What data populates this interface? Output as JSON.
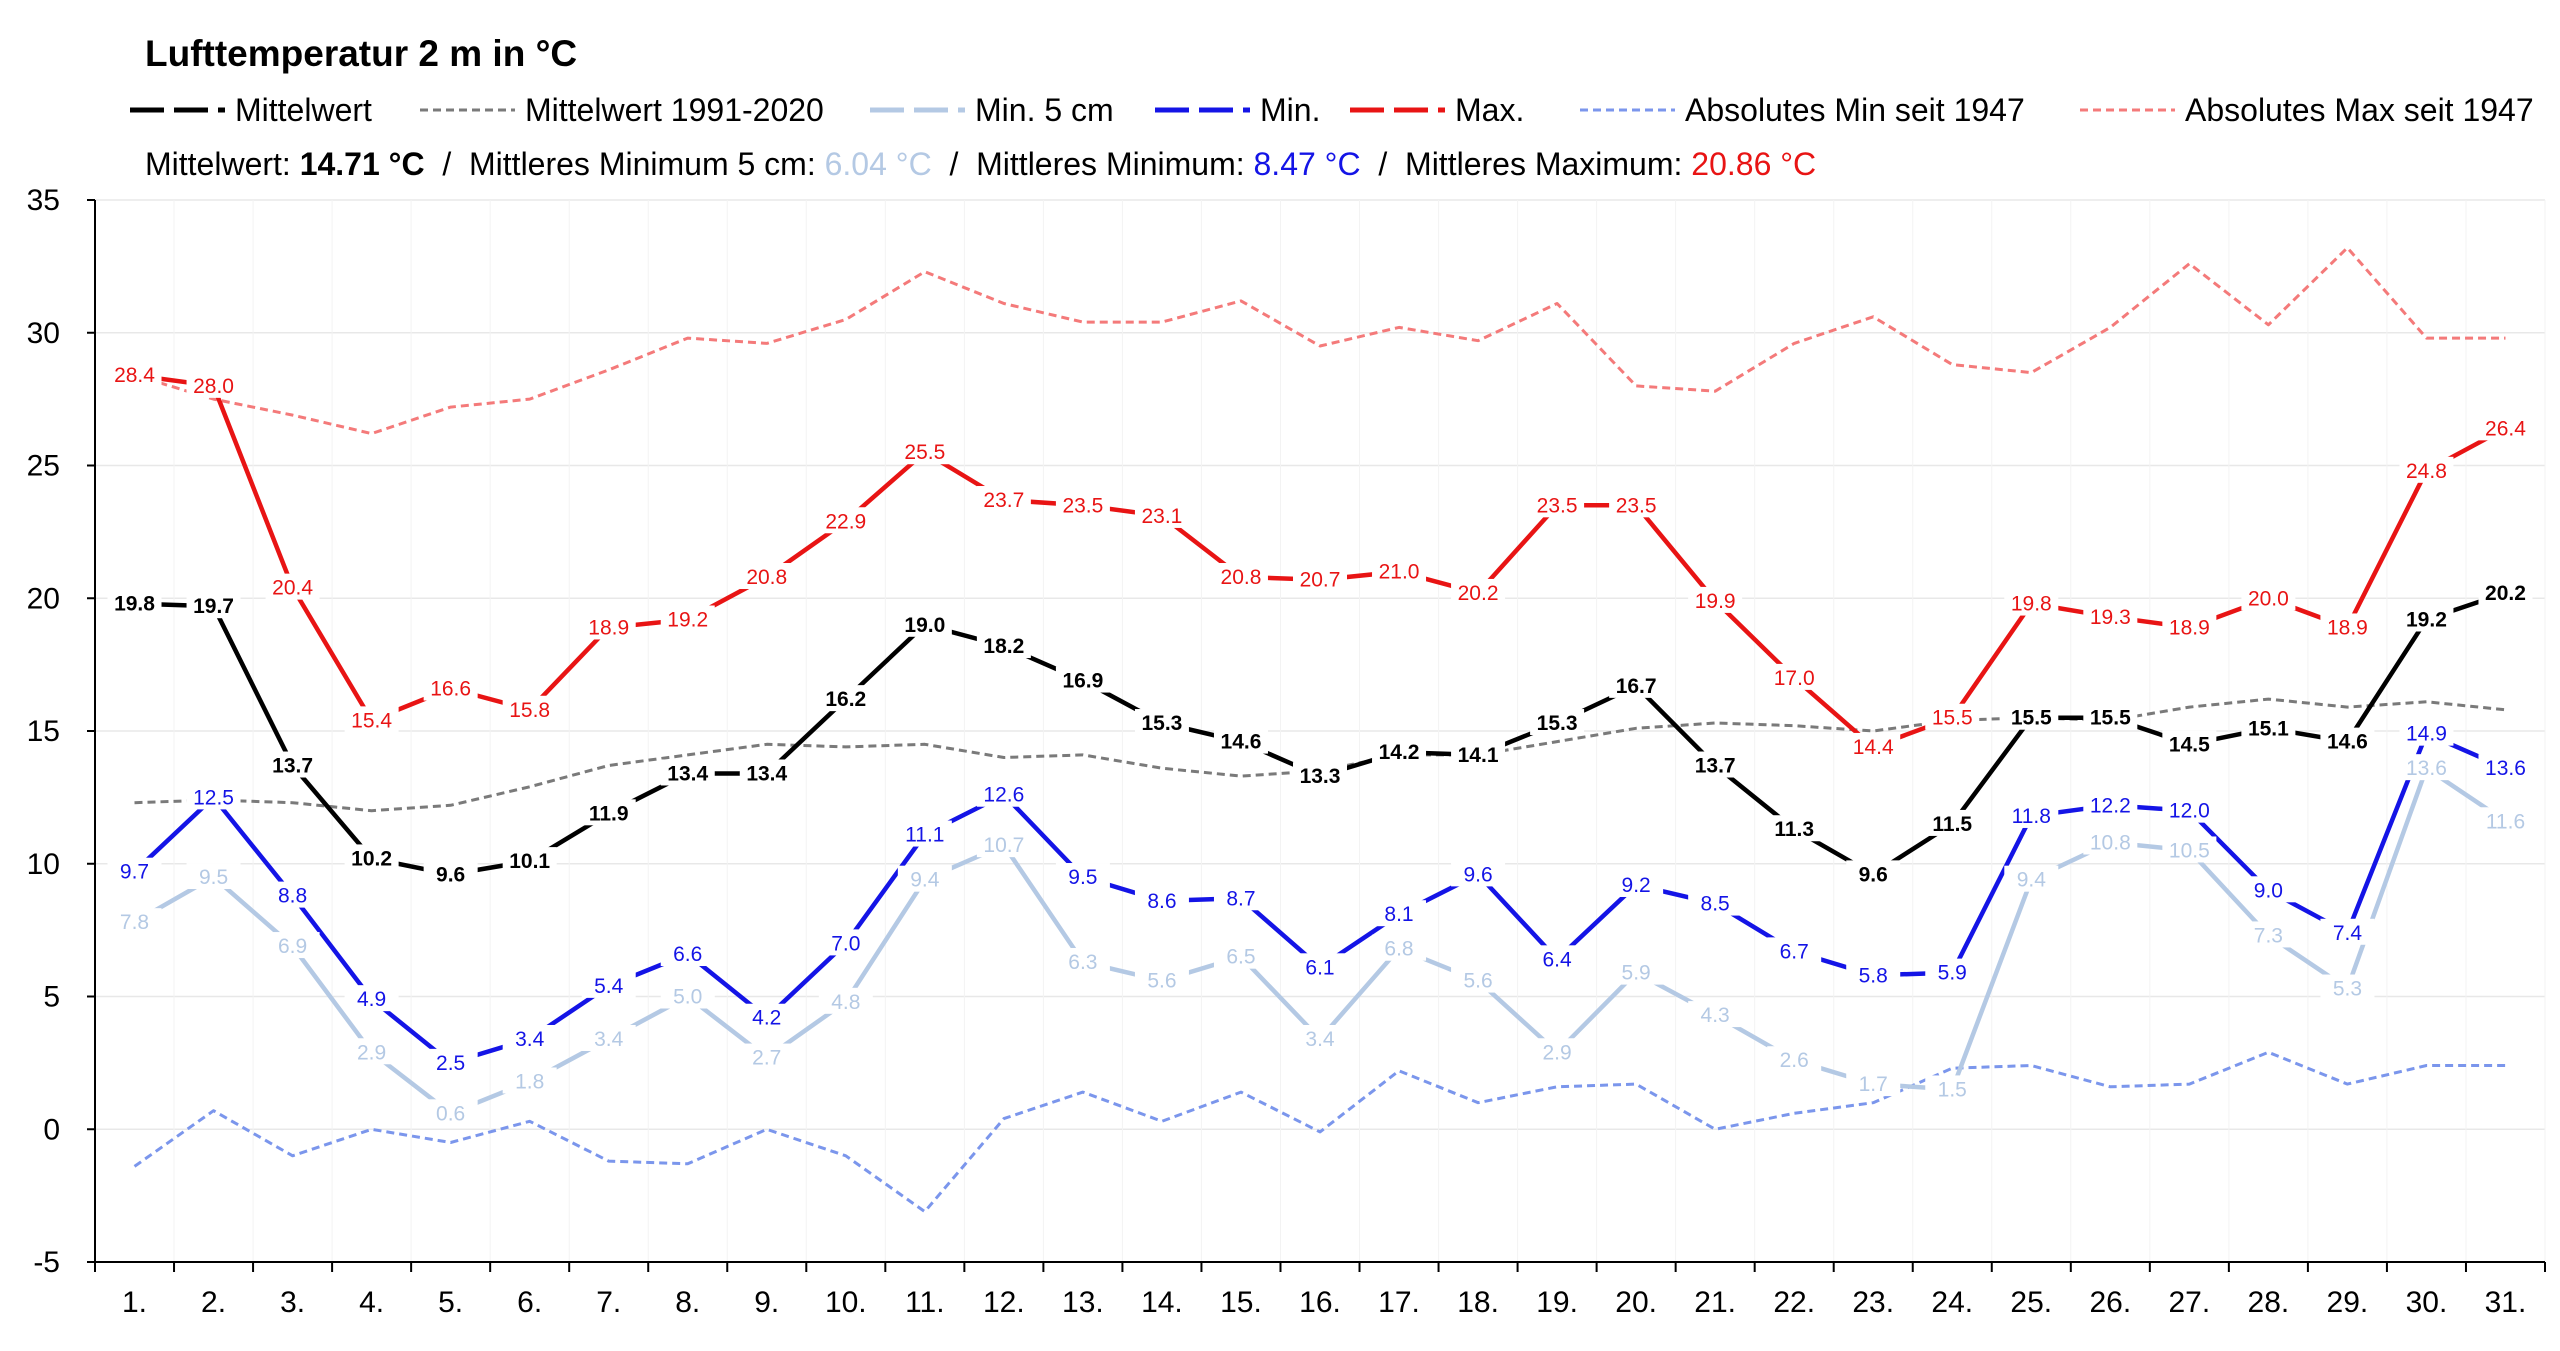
{
  "chart_data": {
    "type": "line",
    "title": "Lufttemperatur 2 m in °C",
    "categories": [
      "1.",
      "2.",
      "3.",
      "4.",
      "5.",
      "6.",
      "7.",
      "8.",
      "9.",
      "10.",
      "11.",
      "12.",
      "13.",
      "14.",
      "15.",
      "16.",
      "17.",
      "18.",
      "19.",
      "20.",
      "21.",
      "22.",
      "23.",
      "24.",
      "25.",
      "26.",
      "27.",
      "28.",
      "29.",
      "30.",
      "31."
    ],
    "ylim": [
      -5,
      35
    ],
    "yticks": [
      "-5",
      "0",
      "5",
      "10",
      "15",
      "20",
      "25",
      "30",
      "35"
    ],
    "grid": true,
    "legend_position": "top",
    "series": [
      {
        "name": "Absolutes Min seit 1947",
        "color": "#7b96ec",
        "style": "dotted",
        "labels": false,
        "values": [
          -1.4,
          0.7,
          -1.0,
          0.0,
          -0.5,
          0.3,
          -1.2,
          -1.3,
          0.0,
          -1.0,
          -3.1,
          0.4,
          1.4,
          0.3,
          1.4,
          -0.1,
          2.2,
          1.0,
          1.6,
          1.7,
          0.0,
          0.6,
          1.0,
          2.3,
          2.4,
          1.6,
          1.7,
          2.9,
          1.7,
          2.4,
          2.4
        ]
      },
      {
        "name": "Absolutes Max seit 1947",
        "color": "#f47a7a",
        "style": "dotted",
        "labels": false,
        "values": [
          28.4,
          27.5,
          26.9,
          26.2,
          27.2,
          27.5,
          28.6,
          29.8,
          29.6,
          30.5,
          32.3,
          31.1,
          30.4,
          30.4,
          31.2,
          29.5,
          30.2,
          29.7,
          31.1,
          28.0,
          27.8,
          29.6,
          30.6,
          28.8,
          28.5,
          30.2,
          32.6,
          30.3,
          33.2,
          29.8,
          29.8
        ]
      },
      {
        "name": "Mittelwert 1991-2020",
        "color": "#7a7a7a",
        "style": "dotted",
        "labels": false,
        "values": [
          12.3,
          12.4,
          12.3,
          12.0,
          12.2,
          12.9,
          13.7,
          14.1,
          14.5,
          14.4,
          14.5,
          14.0,
          14.1,
          13.6,
          13.3,
          13.5,
          14.1,
          14.1,
          14.6,
          15.1,
          15.3,
          15.2,
          15.0,
          15.4,
          15.5,
          15.4,
          15.9,
          16.2,
          15.9,
          16.1,
          15.8
        ]
      },
      {
        "name": "Min. 5 cm",
        "color": "#b4c9e4",
        "style": "solid",
        "labels": true,
        "values": [
          7.8,
          9.5,
          6.9,
          2.9,
          0.6,
          1.8,
          3.4,
          5.0,
          2.7,
          4.8,
          9.4,
          10.7,
          6.3,
          5.6,
          6.5,
          3.4,
          6.8,
          5.6,
          2.9,
          5.9,
          4.3,
          2.6,
          1.7,
          1.5,
          9.4,
          10.8,
          10.5,
          7.3,
          5.3,
          13.6,
          11.6
        ]
      },
      {
        "name": "Min.",
        "color": "#1414e6",
        "style": "solid",
        "labels": true,
        "values": [
          9.7,
          12.5,
          8.8,
          4.9,
          2.5,
          3.4,
          5.4,
          6.6,
          4.2,
          7.0,
          11.1,
          12.6,
          9.5,
          8.6,
          8.7,
          6.1,
          8.1,
          9.6,
          6.4,
          9.2,
          8.5,
          6.7,
          5.8,
          5.9,
          11.8,
          12.2,
          12.0,
          9.0,
          7.4,
          14.9,
          13.6
        ]
      },
      {
        "name": "Max.",
        "color": "#e81414",
        "style": "solid",
        "labels": true,
        "values": [
          28.4,
          28.0,
          20.4,
          15.4,
          16.6,
          15.8,
          18.9,
          19.2,
          20.8,
          22.9,
          25.5,
          23.7,
          23.5,
          23.1,
          20.8,
          20.7,
          21.0,
          20.2,
          23.5,
          23.5,
          19.9,
          17.0,
          14.4,
          15.5,
          19.8,
          19.3,
          18.9,
          20.0,
          18.9,
          24.8,
          26.4
        ]
      },
      {
        "name": "Mittelwert",
        "color": "#000000",
        "style": "solid",
        "labels": true,
        "values": [
          19.8,
          19.7,
          13.7,
          10.2,
          9.6,
          10.1,
          11.9,
          13.4,
          13.4,
          16.2,
          19.0,
          18.2,
          16.9,
          15.3,
          14.6,
          13.3,
          14.2,
          14.1,
          15.3,
          16.7,
          13.7,
          11.3,
          9.6,
          11.5,
          15.5,
          15.5,
          14.5,
          15.1,
          14.6,
          19.2,
          20.2
        ]
      }
    ]
  },
  "stats": {
    "mean_label": "Mittelwert: ",
    "mean_value": "14.71 °C",
    "sep1": "  /  ",
    "min5_label": "Mittleres Minimum 5 cm: ",
    "min5_value": "6.04 °C",
    "sep2": "  /  ",
    "min_label": "Mittleres Minimum: ",
    "min_value": "8.47 °C",
    "sep3": "  /  ",
    "max_label": "Mittleres Maximum: ",
    "max_value": "20.86 °C"
  },
  "legend": [
    {
      "label": "Mittelwert",
      "color": "#000000",
      "style": "dash"
    },
    {
      "label": "Mittelwert 1991-2020",
      "color": "#7a7a7a",
      "style": "dotted"
    },
    {
      "label": "Min. 5 cm",
      "color": "#b4c9e4",
      "style": "dash"
    },
    {
      "label": "Min.",
      "color": "#1414e6",
      "style": "dash"
    },
    {
      "label": "Max.",
      "color": "#e81414",
      "style": "dash"
    },
    {
      "label": "Absolutes Min seit 1947",
      "color": "#7b96ec",
      "style": "dotted"
    },
    {
      "label": "Absolutes Max seit 1947",
      "color": "#f47a7a",
      "style": "dotted"
    }
  ]
}
